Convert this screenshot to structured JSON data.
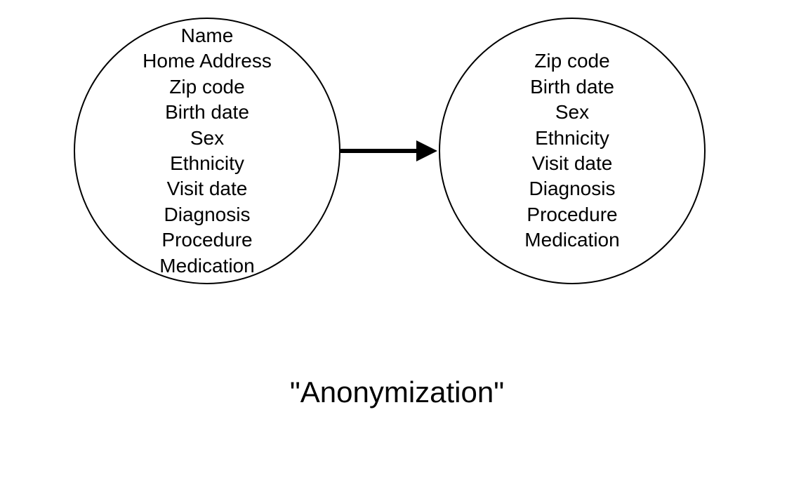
{
  "diagram": {
    "type": "flowchart",
    "background_color": "#ffffff",
    "stroke_color": "#000000",
    "text_color": "#000000",
    "left_circle": {
      "items": [
        "Name",
        "Home Address",
        "Zip code",
        "Birth date",
        "Sex",
        "Ethnicity",
        "Visit date",
        "Diagnosis",
        "Procedure",
        "Medication"
      ],
      "stroke_width": 2,
      "diameter": 380,
      "font_size": 28
    },
    "right_circle": {
      "items": [
        "Zip code",
        "Birth date",
        "Sex",
        "Ethnicity",
        "Visit date",
        "Diagnosis",
        "Procedure",
        "Medication"
      ],
      "stroke_width": 2,
      "diameter": 380,
      "font_size": 28
    },
    "arrow": {
      "color": "#000000",
      "line_width": 6,
      "head_length": 30,
      "head_width": 30,
      "total_length": 140
    },
    "caption": {
      "text": "\"Anonymization\"",
      "font_size": 42
    }
  }
}
